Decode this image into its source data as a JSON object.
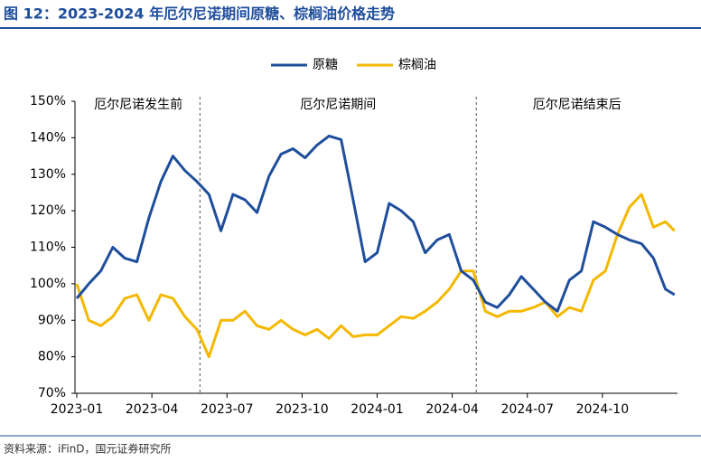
{
  "header": {
    "title": "图 12：2023-2024 年厄尔尼诺期间原糖、棕榈油价格走势"
  },
  "chart_data": {
    "type": "line",
    "x": [
      2023.0,
      2023.04,
      2023.08,
      2023.12,
      2023.16,
      2023.2,
      2023.24,
      2023.28,
      2023.32,
      2023.36,
      2023.4,
      2023.44,
      2023.48,
      2023.52,
      2023.56,
      2023.6,
      2023.64,
      2023.68,
      2023.72,
      2023.76,
      2023.8,
      2023.84,
      2023.88,
      2023.92,
      2023.96,
      2024.0,
      2024.04,
      2024.08,
      2024.12,
      2024.16,
      2024.2,
      2024.24,
      2024.28,
      2024.32,
      2024.36,
      2024.4,
      2024.44,
      2024.48,
      2024.52,
      2024.56,
      2024.6,
      2024.64,
      2024.68,
      2024.72,
      2024.76,
      2024.8,
      2024.84,
      2024.88,
      2024.92,
      2024.96,
      2024.99
    ],
    "series": [
      {
        "name": "原糖",
        "color": "#1f4e9c",
        "values": [
          96,
          100,
          103.5,
          110,
          107,
          106,
          118,
          128,
          135,
          131,
          128,
          124.5,
          114.5,
          124.5,
          123,
          119.5,
          129.5,
          135.5,
          137,
          134.5,
          138,
          140.5,
          139.5,
          123,
          106,
          108.5,
          122,
          120,
          117,
          108.5,
          112,
          113.5,
          103.5,
          101,
          95,
          93.5,
          97,
          102,
          98.5,
          95,
          92.5,
          101,
          103.5,
          117,
          115.5,
          113.5,
          112,
          111,
          107,
          98.5,
          97
        ]
      },
      {
        "name": "棕榈油",
        "color": "#f5b800",
        "values": [
          100,
          90,
          88.5,
          91,
          96,
          97,
          90,
          97,
          96,
          91,
          87.5,
          80,
          90,
          90,
          92.5,
          88.5,
          87.5,
          90,
          87.5,
          86,
          87.5,
          85,
          88.5,
          85.5,
          86,
          86,
          88.5,
          91,
          90.5,
          92.5,
          95,
          98.5,
          103.5,
          103.5,
          92.5,
          91,
          92.5,
          92.5,
          93.5,
          95,
          91,
          93.5,
          92.5,
          101,
          103.5,
          113.5,
          121,
          124.5,
          115.5,
          117,
          114.5
        ]
      }
    ],
    "xlim": [
      2023.0,
      2025.0
    ],
    "xticks": [
      {
        "value": 2023.0,
        "label": "2023-01"
      },
      {
        "value": 2023.25,
        "label": "2023-04"
      },
      {
        "value": 2023.5,
        "label": "2023-07"
      },
      {
        "value": 2023.75,
        "label": "2023-10"
      },
      {
        "value": 2024.0,
        "label": "2024-01"
      },
      {
        "value": 2024.25,
        "label": "2024-04"
      },
      {
        "value": 2024.5,
        "label": "2024-07"
      },
      {
        "value": 2024.75,
        "label": "2024-10"
      }
    ],
    "ylim": [
      70,
      150
    ],
    "yticks": [
      {
        "value": 70,
        "label": "70%"
      },
      {
        "value": 80,
        "label": "80%"
      },
      {
        "value": 90,
        "label": "90%"
      },
      {
        "value": 100,
        "label": "100%"
      },
      {
        "value": 110,
        "label": "110%"
      },
      {
        "value": 120,
        "label": "120%"
      },
      {
        "value": 130,
        "label": "130%"
      },
      {
        "value": 140,
        "label": "140%"
      },
      {
        "value": 150,
        "label": "150%"
      }
    ],
    "dividers": [
      2023.41,
      2024.33
    ],
    "annotations": [
      "厄尔尼诺发生前",
      "厄尔尼诺期间",
      "厄尔尼诺结束后"
    ],
    "legend": "top"
  },
  "footer": {
    "source": "资料来源：iFinD，国元证券研究所"
  }
}
